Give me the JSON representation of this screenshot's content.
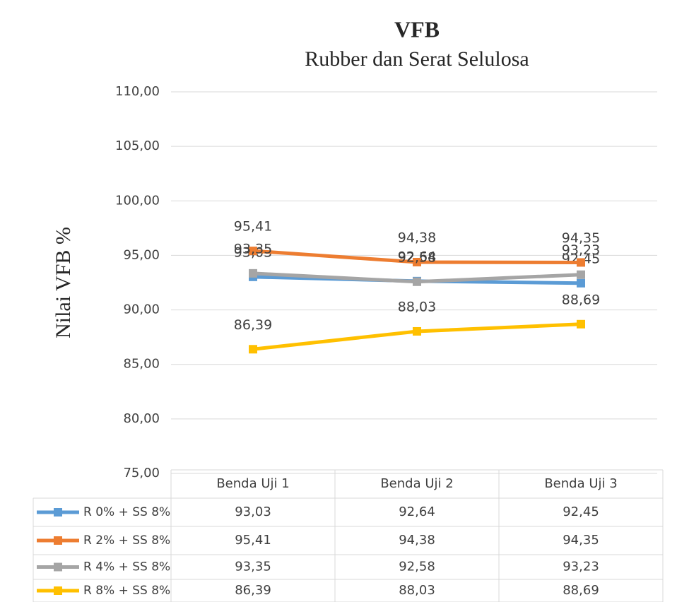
{
  "chart_data": {
    "type": "line",
    "title": "VFB",
    "subtitle": "Rubber dan Serat Selulosa",
    "y_label": "Nilai VFB %",
    "categories": [
      "Benda Uji 1",
      "Benda Uji 2",
      "Benda Uji 3"
    ],
    "series": [
      {
        "name": "R 0% + SS 8%",
        "color": "#5b9bd5",
        "values": [
          93.03,
          92.64,
          92.45
        ],
        "value_labels": [
          "93,03",
          "92,64",
          "92,45"
        ]
      },
      {
        "name": "R 2% + SS 8%",
        "color": "#ed7d31",
        "values": [
          95.41,
          94.38,
          94.35
        ],
        "value_labels": [
          "95,41",
          "94,38",
          "94,35"
        ]
      },
      {
        "name": "R 4% + SS 8%",
        "color": "#a5a5a5",
        "values": [
          93.35,
          92.58,
          93.23
        ],
        "value_labels": [
          "93,35",
          "92,58",
          "93,23"
        ]
      },
      {
        "name": "R 8% + SS 8%",
        "color": "#ffc000",
        "values": [
          86.39,
          88.03,
          88.69
        ],
        "value_labels": [
          "86,39",
          "88,03",
          "88,69"
        ]
      }
    ],
    "ylim": [
      75,
      110
    ],
    "yticks": [
      {
        "value": 75,
        "label": "75,00"
      },
      {
        "value": 80,
        "label": "80,00"
      },
      {
        "value": 85,
        "label": "85,00"
      },
      {
        "value": 90,
        "label": "90,00"
      },
      {
        "value": 95,
        "label": "95,00"
      },
      {
        "value": 100,
        "label": "100,00"
      },
      {
        "value": 105,
        "label": "105,00"
      },
      {
        "value": 110,
        "label": "110,00"
      }
    ],
    "grid": true,
    "data_table": true
  }
}
